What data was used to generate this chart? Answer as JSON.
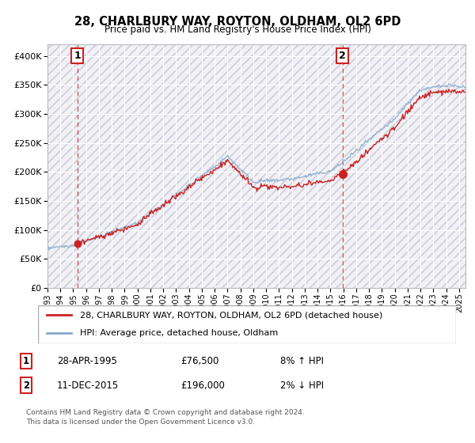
{
  "title": "28, CHARLBURY WAY, ROYTON, OLDHAM, OL2 6PD",
  "subtitle": "Price paid vs. HM Land Registry's House Price Index (HPI)",
  "legend_line1": "28, CHARLBURY WAY, ROYTON, OLDHAM, OL2 6PD (detached house)",
  "legend_line2": "HPI: Average price, detached house, Oldham",
  "marker1_date": "28-APR-1995",
  "marker1_price": "£76,500",
  "marker1_hpi": "8% ↑ HPI",
  "marker1_year": 1995.32,
  "marker1_value": 76500,
  "marker2_date": "11-DEC-2015",
  "marker2_price": "£196,000",
  "marker2_hpi": "2% ↓ HPI",
  "marker2_year": 2015.95,
  "marker2_value": 196000,
  "footnote1": "Contains HM Land Registry data © Crown copyright and database right 2024.",
  "footnote2": "This data is licensed under the Open Government Licence v3.0.",
  "red_color": "#cc2222",
  "blue_color": "#88aacc",
  "ylim": [
    0,
    420000
  ],
  "xlim_start": 1993.0,
  "xlim_end": 2025.5,
  "yticks": [
    0,
    50000,
    100000,
    150000,
    200000,
    250000,
    300000,
    350000,
    400000
  ],
  "xticks": [
    1993,
    1994,
    1995,
    1996,
    1997,
    1998,
    1999,
    2000,
    2001,
    2002,
    2003,
    2004,
    2005,
    2006,
    2007,
    2008,
    2009,
    2010,
    2011,
    2012,
    2013,
    2014,
    2015,
    2016,
    2017,
    2018,
    2019,
    2020,
    2021,
    2022,
    2023,
    2024,
    2025
  ]
}
